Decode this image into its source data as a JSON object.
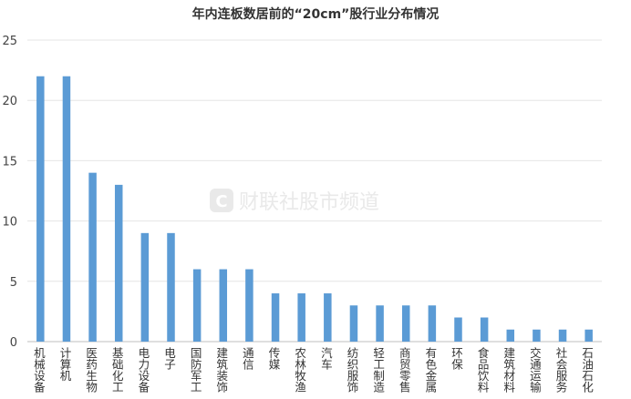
{
  "chart_data": {
    "type": "bar",
    "title": "年内连板数居前的“20cm”股行业分布情况",
    "xlabel": "",
    "ylabel": "",
    "ylim": [
      0,
      25
    ],
    "yticks": [
      0,
      5,
      10,
      15,
      20,
      25
    ],
    "grid": true,
    "bar_color": "#5b9bd5",
    "categories": [
      "机械设备",
      "计算机",
      "医药生物",
      "基础化工",
      "电力设备",
      "电子",
      "国防军工",
      "建筑装饰",
      "通信",
      "传媒",
      "农林牧渔",
      "汽车",
      "纺织服饰",
      "轻工制造",
      "商贸零售",
      "有色金属",
      "环保",
      "食品饮料",
      "建筑材料",
      "交通运输",
      "社会服务",
      "石油石化"
    ],
    "values": [
      22,
      22,
      14,
      13,
      9,
      9,
      6,
      6,
      6,
      4,
      4,
      4,
      3,
      3,
      3,
      3,
      2,
      2,
      1,
      1,
      1,
      1
    ]
  },
  "watermark": {
    "logo_letter": "C",
    "text": "财联社股市频道",
    "color": "#e3e3e3"
  }
}
